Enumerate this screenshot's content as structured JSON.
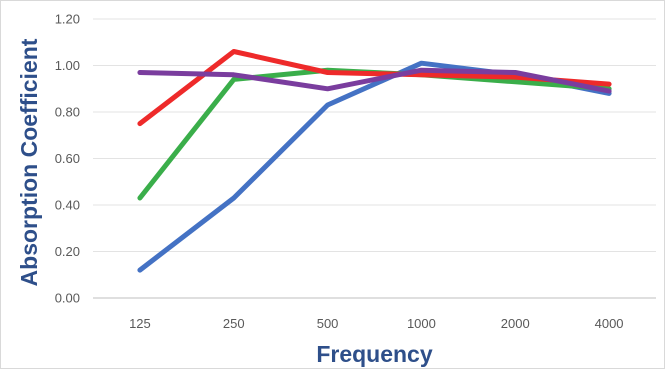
{
  "chart_data": {
    "type": "line",
    "title": "",
    "xlabel": "Frequency",
    "ylabel": "Absorption Coefficient",
    "categories": [
      "125",
      "250",
      "500",
      "1000",
      "2000",
      "4000"
    ],
    "yticks": [
      "0.00",
      "0.20",
      "0.40",
      "0.60",
      "0.80",
      "1.00",
      "1.20"
    ],
    "ylim": [
      0,
      1.2
    ],
    "grid": true,
    "legend": "none",
    "series": [
      {
        "color": "#4472c4",
        "values": [
          0.12,
          0.43,
          0.83,
          1.01,
          0.96,
          0.88
        ]
      },
      {
        "color": "#3aae4a",
        "values": [
          0.43,
          0.94,
          0.98,
          0.96,
          0.93,
          0.9
        ]
      },
      {
        "color": "#ee2a2a",
        "values": [
          0.75,
          1.06,
          0.97,
          0.96,
          0.95,
          0.92
        ]
      },
      {
        "color": "#7a3d9e",
        "values": [
          0.97,
          0.96,
          0.9,
          0.98,
          0.97,
          0.89
        ]
      }
    ]
  }
}
